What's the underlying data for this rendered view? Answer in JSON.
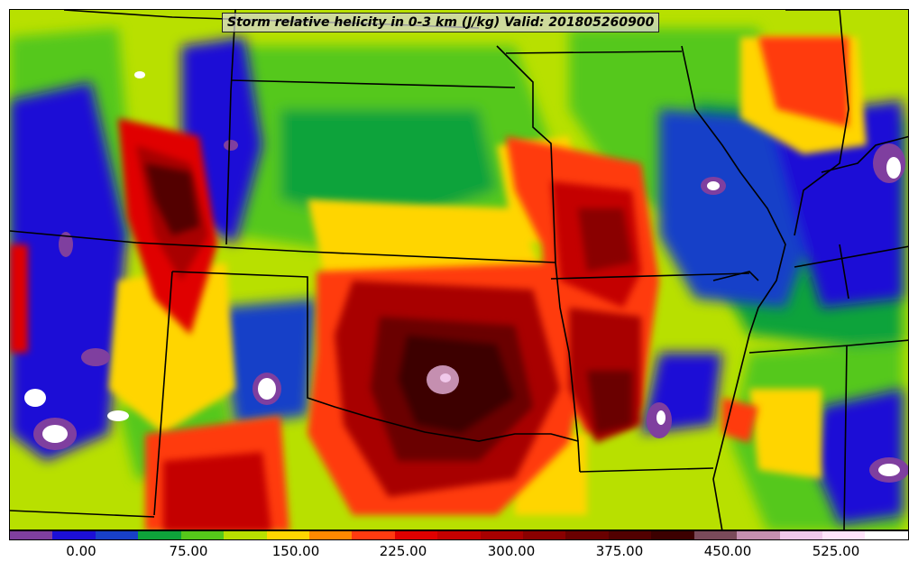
{
  "title": "Storm relative helicity in 0-3 km (J/kg) Valid: 201805260900",
  "colorbar": {
    "colors": [
      "#7f3f9f",
      "#1c0fd6",
      "#1840c8",
      "#0ea33a",
      "#55c81a",
      "#b8e000",
      "#ffd500",
      "#ff8800",
      "#ff3a10",
      "#e00000",
      "#c40000",
      "#a80000",
      "#8a0000",
      "#6a0000",
      "#520000",
      "#3c0000",
      "#7a4a5a",
      "#c58fb0",
      "#f0c8ea",
      "#ffe4fa",
      "#ffffff"
    ],
    "tick_labels": [
      "0.00",
      "75.00",
      "150.00",
      "225.00",
      "300.00",
      "375.00",
      "450.00",
      "525.00"
    ]
  },
  "palette": {
    "purple": "#7f3f9f",
    "blue": "#1c0fd6",
    "dark_green": "#0ea33a",
    "green": "#55c81a",
    "lime": "#b8e000",
    "yellow": "#ffd500",
    "orange": "#ff8800",
    "red": "#e01010",
    "dark_red": "#8a0000",
    "maroon": "#4a0000",
    "pink": "#d9a0c8",
    "white": "#ffffff",
    "border": "#000000"
  }
}
